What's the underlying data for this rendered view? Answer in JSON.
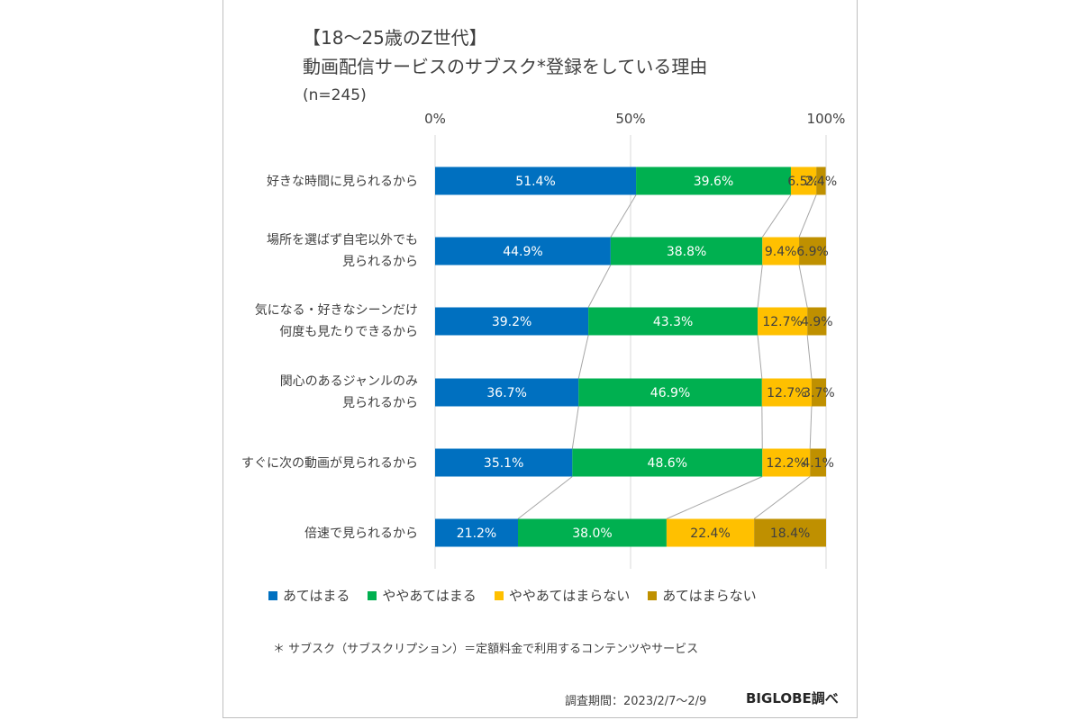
{
  "header": {
    "title_line1": "【18〜25歳のZ世代】",
    "title_line2": "動画配信サービスのサブスク*登録をしている理由",
    "sample_size": "(n=245)"
  },
  "legend": [
    {
      "label": "あてはまる",
      "color": "#0070c0"
    },
    {
      "label": "ややあてはまる",
      "color": "#00b050"
    },
    {
      "label": "ややあてはまらない",
      "color": "#ffc000"
    },
    {
      "label": "あてはまらない",
      "color": "#bf9000"
    }
  ],
  "footnote": "＊ サブスク（サブスクリプション）＝定額料金で利用するコンテンツやサービス",
  "survey_period": "調査期間：2023/2/7〜2/9",
  "brand": "BIGLOBE調べ",
  "chart_data": {
    "type": "bar",
    "orientation": "horizontal",
    "stacked": "percent",
    "title": "【18〜25歳のZ世代】動画配信サービスのサブスク*登録をしている理由",
    "subtitle": "(n=245)",
    "xlim": [
      0,
      100
    ],
    "x_ticks": [
      "0%",
      "50%",
      "100%"
    ],
    "legend_position": "bottom",
    "categories": [
      [
        "好きな時間に見られるから"
      ],
      [
        "場所を選ばず自宅以外でも",
        "見られるから"
      ],
      [
        "気になる・好きなシーンだけ",
        "何度も見たりできるから"
      ],
      [
        "関心のあるジャンルのみ",
        "見られるから"
      ],
      [
        "すぐに次の動画が見られるから"
      ],
      [
        "倍速で見られるから"
      ]
    ],
    "series": [
      {
        "name": "あてはまる",
        "color": "#0070c0",
        "label_color": "#ffffff",
        "values": [
          51.4,
          44.9,
          39.2,
          36.7,
          35.1,
          21.2
        ],
        "labels": [
          "51.4%",
          "44.9%",
          "39.2%",
          "36.7%",
          "35.1%",
          "21.2%"
        ]
      },
      {
        "name": "ややあてはまる",
        "color": "#00b050",
        "label_color": "#ffffff",
        "values": [
          39.6,
          38.8,
          43.3,
          46.9,
          48.6,
          38.0
        ],
        "labels": [
          "39.6%",
          "38.8%",
          "43.3%",
          "46.9%",
          "48.6%",
          "38.0%"
        ]
      },
      {
        "name": "ややあてはまらない",
        "color": "#ffc000",
        "label_color": "#404040",
        "values": [
          6.5,
          9.4,
          12.7,
          12.7,
          12.2,
          22.4
        ],
        "labels": [
          "6.5%",
          "9.4%",
          "12.7%",
          "12.7%",
          "12.2%",
          "22.4%"
        ]
      },
      {
        "name": "あてはまらない",
        "color": "#bf9000",
        "label_color": "#404040",
        "values": [
          2.4,
          6.9,
          4.9,
          3.7,
          4.1,
          18.4
        ],
        "labels": [
          "2.4%",
          "6.9%",
          "4.9%",
          "3.7%",
          "4.1%",
          "18.4%"
        ]
      }
    ]
  }
}
